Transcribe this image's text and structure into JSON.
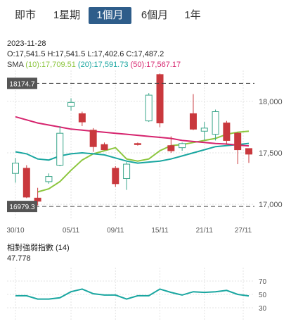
{
  "tabs": [
    {
      "label": "即市",
      "active": false
    },
    {
      "label": "1星期",
      "active": false
    },
    {
      "label": "1個月",
      "active": true
    },
    {
      "label": "6個月",
      "active": false
    },
    {
      "label": "1年",
      "active": false
    }
  ],
  "info": {
    "date": "2023-11-28",
    "ohlc": "O:17,541.5  H:17,541.5  L:17,402.6  C:17,487.2",
    "sma_label": "SMA",
    "sma10": "(10):17,709.51",
    "sma20": "(20):17,591.73",
    "sma50": "(50):17,567.17"
  },
  "colors": {
    "up_fill": "#ffffff",
    "up_stroke": "#3aa68a",
    "down": "#c9383d",
    "sma10": "#8cc63e",
    "sma20": "#19a6a0",
    "sma50": "#d6246e",
    "rsi": "#19a6a0",
    "grid": "#e3e3e3",
    "ref_box": "#555555",
    "tab_active": "#2e5d8a"
  },
  "rsi": {
    "title": "相對強弱指數 (14)",
    "value": "47.778",
    "ticks": [
      "70",
      "50",
      "30"
    ]
  },
  "chart_data": [
    {
      "type": "candlestick",
      "ylim": [
        16850,
        18300
      ],
      "y_ticks": [
        "18,000",
        "17,500",
        "17,000"
      ],
      "y_tick_values": [
        18000,
        17500,
        17000
      ],
      "x_ticks": [
        "30/10",
        "05/11",
        "09/11",
        "15/11",
        "21/11",
        "27/11"
      ],
      "ref_lines": [
        {
          "label": "18174.7",
          "value": 18174.7
        },
        {
          "label": "16979.3",
          "value": 16979.3
        }
      ],
      "candles": [
        {
          "o": 17300,
          "h": 17450,
          "l": 17210,
          "c": 17400
        },
        {
          "o": 17350,
          "h": 17380,
          "l": 17060,
          "c": 17070
        },
        {
          "o": 17060,
          "h": 17160,
          "l": 16990,
          "c": 17030
        },
        {
          "o": 17220,
          "h": 17300,
          "l": 17200,
          "c": 17270
        },
        {
          "o": 17380,
          "h": 17760,
          "l": 17370,
          "c": 17690
        },
        {
          "o": 17950,
          "h": 18030,
          "l": 17910,
          "c": 17990
        },
        {
          "o": 17880,
          "h": 17900,
          "l": 17760,
          "c": 17800
        },
        {
          "o": 17720,
          "h": 17740,
          "l": 17510,
          "c": 17560
        },
        {
          "o": 17580,
          "h": 17600,
          "l": 17530,
          "c": 17530
        },
        {
          "o": 17350,
          "h": 17370,
          "l": 17170,
          "c": 17200
        },
        {
          "o": 17250,
          "h": 17410,
          "l": 17140,
          "c": 17390
        },
        {
          "o": 17590,
          "h": 17600,
          "l": 17570,
          "c": 17580
        },
        {
          "o": 17810,
          "h": 18080,
          "l": 17800,
          "c": 18060
        },
        {
          "o": 18260,
          "h": 18270,
          "l": 17750,
          "c": 17790
        },
        {
          "o": 17570,
          "h": 17660,
          "l": 17500,
          "c": 17520
        },
        {
          "o": 17550,
          "h": 17600,
          "l": 17520,
          "c": 17590
        },
        {
          "o": 17880,
          "h": 18070,
          "l": 17720,
          "c": 17730
        },
        {
          "o": 17710,
          "h": 17800,
          "l": 17620,
          "c": 17740
        },
        {
          "o": 17680,
          "h": 17920,
          "l": 17620,
          "c": 17900
        },
        {
          "o": 17790,
          "h": 17810,
          "l": 17580,
          "c": 17620
        },
        {
          "o": 17690,
          "h": 17700,
          "l": 17390,
          "c": 17530
        },
        {
          "o": 17541.5,
          "h": 17541.5,
          "l": 17402.6,
          "c": 17487.2
        }
      ],
      "sma": [
        {
          "name": "SMA(10)",
          "values": [
            null,
            null,
            17120,
            17150,
            17220,
            17330,
            17430,
            17490,
            17520,
            17550,
            17440,
            17420,
            17440,
            17520,
            17570,
            17580,
            17600,
            17620,
            17640,
            17680,
            17700,
            17709.51
          ]
        },
        {
          "name": "SMA(20)",
          "values": [
            17510,
            17490,
            17440,
            17430,
            17470,
            17490,
            17500,
            17490,
            17480,
            17450,
            17420,
            17400,
            17410,
            17420,
            17440,
            17470,
            17500,
            17530,
            17560,
            17570,
            17580,
            17591.73
          ]
        },
        {
          "name": "SMA(50)",
          "values": [
            17850,
            17820,
            17790,
            17770,
            17750,
            17730,
            17720,
            17710,
            17700,
            17690,
            17680,
            17670,
            17660,
            17650,
            17640,
            17620,
            17610,
            17600,
            17590,
            17585,
            17575,
            17567.17
          ]
        }
      ]
    },
    {
      "type": "line",
      "title": "相對強弱指數 (14)",
      "ylim": [
        10,
        90
      ],
      "y_ticks": [
        70,
        50,
        30
      ],
      "series": [
        {
          "name": "RSI (14)",
          "values": [
            48,
            48,
            43,
            43,
            45,
            54,
            58,
            51,
            49,
            49,
            43,
            48,
            48,
            58,
            53,
            49,
            54,
            53,
            54,
            56,
            50,
            47.778
          ]
        }
      ]
    }
  ]
}
